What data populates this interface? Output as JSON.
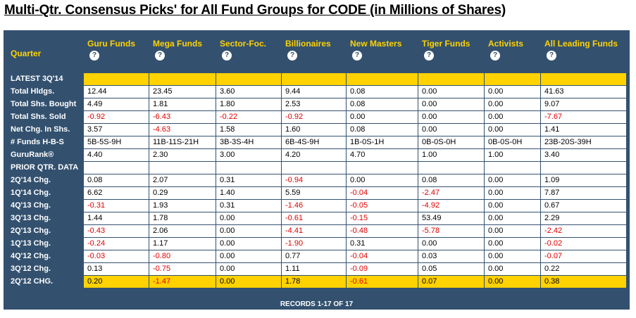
{
  "title": "Multi-Qtr. Consensus Picks' for All Fund Groups for CODE (in Millions of Shares)",
  "help_glyph": "?",
  "columns": [
    "Quarter",
    "Guru Funds",
    "Mega Funds",
    "Sector-Foc.",
    "Billionaires",
    "New Masters",
    "Tiger Funds",
    "Activists",
    "All Leading Funds"
  ],
  "rows": [
    {
      "label": "LATEST 3Q'14",
      "values": [
        "",
        "",
        "",
        "",
        "",
        "",
        "",
        ""
      ],
      "highlight": true
    },
    {
      "label": "Total Hldgs.",
      "values": [
        "12.44",
        "23.45",
        "3.60",
        "9.44",
        "0.08",
        "0.00",
        "0.00",
        "41.63"
      ]
    },
    {
      "label": "Total Shs. Bought",
      "values": [
        "4.49",
        "1.81",
        "1.80",
        "2.53",
        "0.08",
        "0.00",
        "0.00",
        "9.07"
      ]
    },
    {
      "label": "Total Shs. Sold",
      "values": [
        "-0.92",
        "-6.43",
        "-0.22",
        "-0.92",
        "0.00",
        "0.00",
        "0.00",
        "-7.67"
      ]
    },
    {
      "label": "Net Chg. In Shs.",
      "values": [
        "3.57",
        "-4.63",
        "1.58",
        "1.60",
        "0.08",
        "0.00",
        "0.00",
        "1.41"
      ]
    },
    {
      "label": "# Funds H-B-S",
      "values": [
        "5B-5S-9H",
        "11B-11S-21H",
        "3B-3S-4H",
        "6B-4S-9H",
        "1B-0S-1H",
        "0B-0S-0H",
        "0B-0S-0H",
        "23B-20S-39H"
      ]
    },
    {
      "label": "GuruRank®",
      "values": [
        "4.40",
        "2.30",
        "3.00",
        "4.20",
        "4.70",
        "1.00",
        "1.00",
        "3.40"
      ]
    },
    {
      "label": "PRIOR QTR. DATA",
      "values": [
        "",
        "",
        "",
        "",
        "",
        "",
        "",
        ""
      ]
    },
    {
      "label": "2Q'14 Chg.",
      "values": [
        "0.08",
        "2.07",
        "0.31",
        "-0.94",
        "0.00",
        "0.08",
        "0.00",
        "1.09"
      ]
    },
    {
      "label": "1Q'14 Chg.",
      "values": [
        "6.62",
        "0.29",
        "1.40",
        "5.59",
        "-0.04",
        "-2.47",
        "0.00",
        "7.87"
      ]
    },
    {
      "label": "4Q'13 Chg.",
      "values": [
        "-0.31",
        "1.93",
        "0.31",
        "-1.46",
        "-0.05",
        "-4.92",
        "0.00",
        "0.67"
      ]
    },
    {
      "label": "3Q'13 Chg.",
      "values": [
        "1.44",
        "1.78",
        "0.00",
        "-0.61",
        "-0.15",
        "53.49",
        "0.00",
        "2.29"
      ]
    },
    {
      "label": "2Q'13 Chg.",
      "values": [
        "-0.43",
        "2.06",
        "0.00",
        "-4.41",
        "-0.48",
        "-5.78",
        "0.00",
        "-2.42"
      ]
    },
    {
      "label": "1Q'13 Chg.",
      "values": [
        "-0.24",
        "1.17",
        "0.00",
        "-1.90",
        "0.31",
        "0.00",
        "0.00",
        "-0.02"
      ]
    },
    {
      "label": "4Q'12 Chg.",
      "values": [
        "-0.03",
        "-0.80",
        "0.00",
        "0.77",
        "-0.04",
        "0.03",
        "0.00",
        "-0.07"
      ]
    },
    {
      "label": "3Q'12 Chg.",
      "values": [
        "0.13",
        "-0.75",
        "0.00",
        "1.11",
        "-0.09",
        "0.05",
        "0.00",
        "0.22"
      ]
    },
    {
      "label": "2Q'12 CHG.",
      "values": [
        "0.20",
        "-1.47",
        "0.00",
        "1.78",
        "-0.61",
        "0.07",
        "0.00",
        "0.38"
      ],
      "highlight": true
    }
  ],
  "footer": "RECORDS 1-17 OF 17",
  "colors": {
    "header_bg": "#33516f",
    "header_text": "#ffd200",
    "negative": "#e00000",
    "highlight": "#ffd200"
  }
}
